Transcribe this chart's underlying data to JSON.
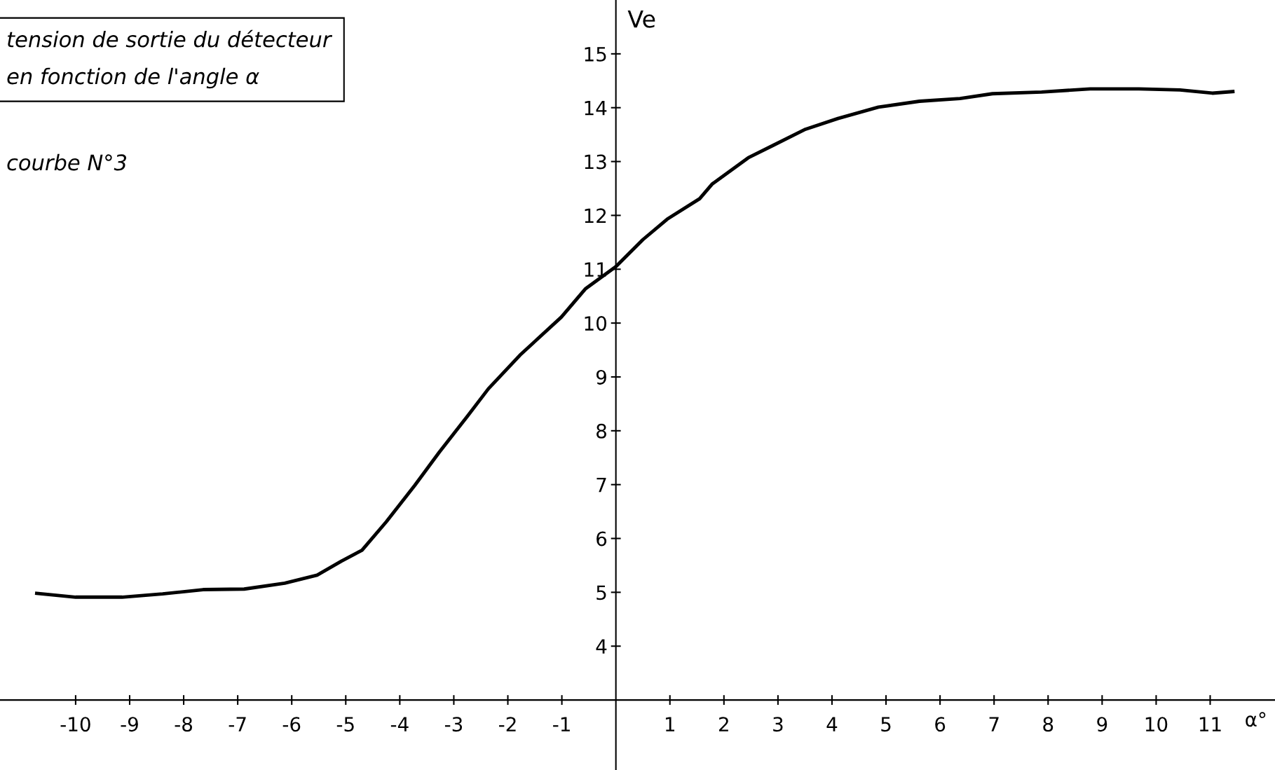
{
  "chart_data": {
    "type": "line",
    "title": "tension de sortie du détecteur\nen fonction de l'angle α",
    "subtitle": "courbe N°3",
    "xlabel": "α°",
    "ylabel": "Ve",
    "x": [
      -10.72,
      -10,
      -9.14,
      -8.39,
      -7.64,
      -6.88,
      -6.13,
      -5.53,
      -5.08,
      -4.7,
      -4.25,
      -3.72,
      -3.27,
      -2.74,
      -2.36,
      -1.76,
      -1.01,
      -0.56,
      0,
      0.5,
      0.95,
      1.55,
      1.78,
      2.45,
      2.91,
      3.51,
      4.11,
      4.86,
      5.62,
      6.37,
      6.97,
      7.88,
      8.78,
      9.68,
      10.44,
      11.04,
      11.42
    ],
    "series": [
      {
        "color": "#000000",
        "values": [
          4.98,
          4.91,
          4.91,
          4.97,
          5.05,
          5.06,
          5.17,
          5.32,
          5.58,
          5.78,
          6.31,
          6.99,
          7.6,
          8.28,
          8.78,
          9.42,
          10.11,
          10.64,
          11.05,
          11.55,
          11.93,
          12.31,
          12.58,
          13.07,
          13.3,
          13.6,
          13.8,
          14.01,
          14.12,
          14.17,
          14.26,
          14.29,
          14.35,
          14.35,
          14.33,
          14.27,
          14.3
        ]
      }
    ],
    "xlim": [
      -11.4,
      12.2
    ],
    "ylim": [
      1.7,
      16
    ],
    "xticks": [
      -10,
      -9,
      -8,
      -7,
      -6,
      -5,
      -4,
      -3,
      -2,
      -1,
      1,
      2,
      3,
      4,
      5,
      6,
      7,
      8,
      9,
      10,
      11
    ],
    "yticks": [
      4,
      5,
      6,
      7,
      8,
      9,
      10,
      11,
      12,
      13,
      14,
      15
    ],
    "grid": false,
    "legend": false,
    "marker": "none",
    "line_style": "solid"
  }
}
